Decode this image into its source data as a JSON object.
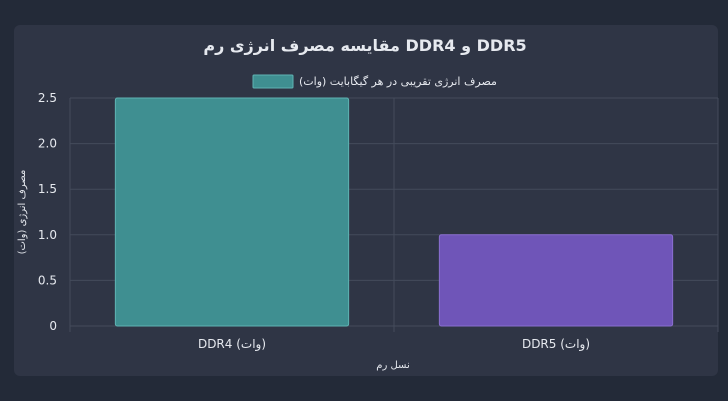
{
  "chart_data": {
    "type": "bar",
    "title": "مقایسه مصرف انرژی رم DDR4 و DDR5",
    "categories": [
      "DDR4 (وات)",
      "DDR5 (وات)"
    ],
    "series": [
      {
        "name": "مصرف انرژی تقریبی در هر گیگابایت (وات)",
        "values": [
          2.5,
          1.0
        ],
        "colors": [
          "#3f8f91",
          "#6f55b8"
        ],
        "borders": [
          "#5fb3b3",
          "#8a6fd0"
        ]
      }
    ],
    "xlabel": "نسل رم",
    "ylabel": "مصرف انرژی (وات)",
    "ylim": [
      0,
      2.5
    ],
    "yticks": [
      "0",
      "0.5",
      "1.0",
      "1.5",
      "2.0",
      "2.5"
    ],
    "legend_position": "top",
    "grid": true
  }
}
